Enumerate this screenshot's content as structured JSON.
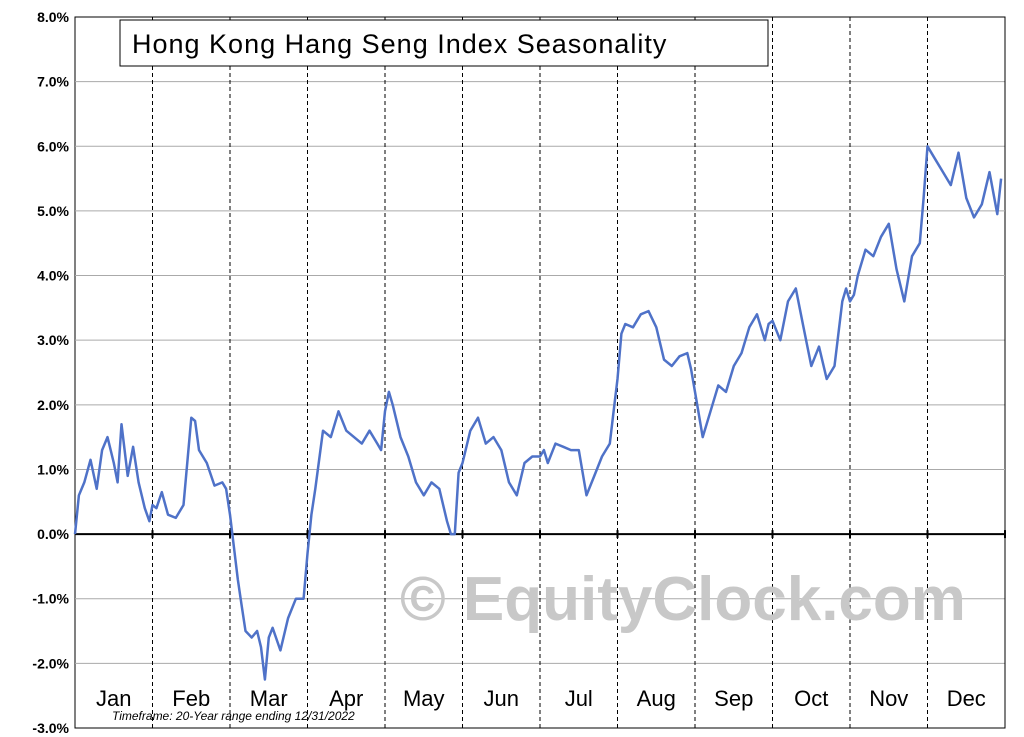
{
  "chart_data": {
    "type": "line",
    "title": "Hong Kong Hang Seng Index Seasonality",
    "ylim": [
      -3,
      8
    ],
    "yticks": [
      "8.0%",
      "7.0%",
      "6.0%",
      "5.0%",
      "4.0%",
      "3.0%",
      "2.0%",
      "1.0%",
      "0.0%",
      "-1.0%",
      "-2.0%",
      "-3.0%"
    ],
    "categories": [
      "Jan",
      "Feb",
      "Mar",
      "Apr",
      "May",
      "Jun",
      "Jul",
      "Aug",
      "Sep",
      "Oct",
      "Nov",
      "Dec"
    ],
    "grid": true,
    "line_color": "#4f72c8",
    "series": [
      {
        "x": [
          0,
          0.05,
          0.12,
          0.2,
          0.28,
          0.35,
          0.42,
          0.5,
          0.55,
          0.6,
          0.68,
          0.75,
          0.82,
          0.9,
          0.96,
          1.0,
          1.05,
          1.12,
          1.2,
          1.3,
          1.4,
          1.5,
          1.55,
          1.6,
          1.7,
          1.8,
          1.9,
          1.95,
          2.0,
          2.05,
          2.1,
          2.15,
          2.2,
          2.28,
          2.35,
          2.4,
          2.45,
          2.5,
          2.55,
          2.65,
          2.75,
          2.85,
          2.95,
          3.0,
          3.05,
          3.1,
          3.2,
          3.3,
          3.4,
          3.5,
          3.6,
          3.7,
          3.8,
          3.9,
          3.95,
          4.0,
          4.05,
          4.1,
          4.2,
          4.3,
          4.4,
          4.5,
          4.6,
          4.7,
          4.8,
          4.85,
          4.9,
          4.95,
          5.0,
          5.1,
          5.2,
          5.3,
          5.4,
          5.5,
          5.6,
          5.7,
          5.8,
          5.9,
          6.0,
          6.05,
          6.1,
          6.2,
          6.3,
          6.4,
          6.5,
          6.6,
          6.7,
          6.8,
          6.9,
          6.95,
          7.0,
          7.05,
          7.1,
          7.2,
          7.3,
          7.4,
          7.5,
          7.6,
          7.7,
          7.8,
          7.9,
          7.95,
          8.0,
          8.1,
          8.2,
          8.3,
          8.4,
          8.5,
          8.6,
          8.7,
          8.8,
          8.9,
          8.95,
          9.0,
          9.1,
          9.2,
          9.3,
          9.4,
          9.5,
          9.6,
          9.7,
          9.8,
          9.9,
          9.95,
          10.0,
          10.05,
          10.1,
          10.2,
          10.3,
          10.4,
          10.5,
          10.6,
          10.7,
          10.8,
          10.9,
          10.95,
          11.0,
          11.1,
          11.2,
          11.3,
          11.4,
          11.5,
          11.6,
          11.7,
          11.8,
          11.9,
          11.95
        ],
        "values": [
          0.0,
          0.6,
          0.8,
          1.15,
          0.7,
          1.3,
          1.5,
          1.1,
          0.8,
          1.7,
          0.9,
          1.35,
          0.8,
          0.4,
          0.2,
          0.45,
          0.4,
          0.65,
          0.3,
          0.25,
          0.45,
          1.8,
          1.75,
          1.3,
          1.1,
          0.75,
          0.8,
          0.7,
          0.3,
          -0.2,
          -0.7,
          -1.1,
          -1.5,
          -1.6,
          -1.5,
          -1.75,
          -2.25,
          -1.6,
          -1.45,
          -1.8,
          -1.3,
          -1.0,
          -1.0,
          -0.3,
          0.3,
          0.7,
          1.6,
          1.5,
          1.9,
          1.6,
          1.5,
          1.4,
          1.6,
          1.4,
          1.3,
          1.9,
          2.2,
          2.0,
          1.5,
          1.2,
          0.8,
          0.6,
          0.8,
          0.7,
          0.2,
          0.0,
          0.0,
          0.95,
          1.1,
          1.6,
          1.8,
          1.4,
          1.5,
          1.3,
          0.8,
          0.6,
          1.1,
          1.2,
          1.2,
          1.3,
          1.1,
          1.4,
          1.35,
          1.3,
          1.3,
          0.6,
          0.9,
          1.2,
          1.4,
          1.9,
          2.4,
          3.1,
          3.25,
          3.2,
          3.4,
          3.45,
          3.2,
          2.7,
          2.6,
          2.75,
          2.8,
          2.55,
          2.2,
          1.5,
          1.9,
          2.3,
          2.2,
          2.6,
          2.8,
          3.2,
          3.4,
          3.0,
          3.25,
          3.3,
          3.0,
          3.6,
          3.8,
          3.2,
          2.6,
          2.9,
          2.4,
          2.6,
          3.6,
          3.8,
          3.6,
          3.7,
          4.0,
          4.4,
          4.3,
          4.6,
          4.8,
          4.1,
          3.6,
          4.3,
          4.5,
          5.2,
          6.0,
          5.8,
          5.6,
          5.4,
          5.9,
          5.2,
          4.9,
          5.1,
          5.6,
          4.95,
          5.5
        ]
      }
    ]
  },
  "timeframe_note": "Timeframe: 20-Year range ending 12/31/2022",
  "watermark": "© EquityClock.com"
}
